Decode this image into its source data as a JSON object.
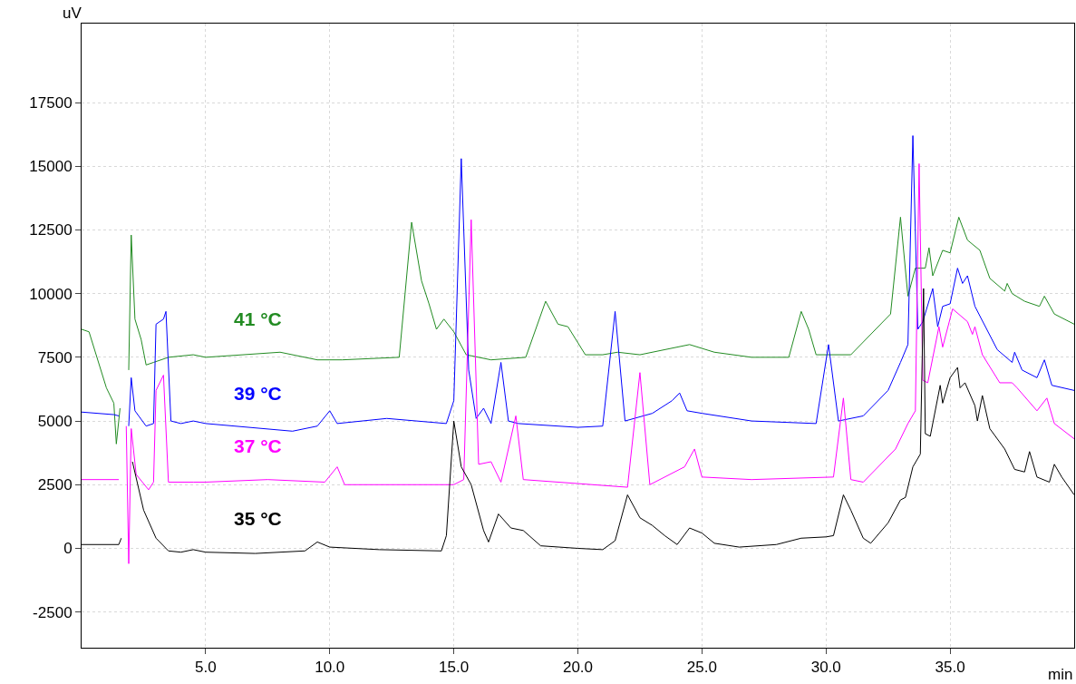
{
  "chart_data": {
    "type": "line",
    "xlabel": "min",
    "ylabel": "uV",
    "xlim": [
      0,
      40
    ],
    "ylim": [
      -3900,
      20600
    ],
    "xticks": [
      {
        "value": 5,
        "label": "5.0"
      },
      {
        "value": 10,
        "label": "10.0"
      },
      {
        "value": 15,
        "label": "15.0"
      },
      {
        "value": 20,
        "label": "20.0"
      },
      {
        "value": 25,
        "label": "25.0"
      },
      {
        "value": 30,
        "label": "30.0"
      },
      {
        "value": 35,
        "label": "35.0"
      }
    ],
    "yticks": [
      -2500,
      0,
      2500,
      5000,
      7500,
      10000,
      12500,
      15000,
      17500
    ],
    "grid": true,
    "legend": false,
    "marker": "none",
    "line_style": "solid",
    "series": [
      {
        "name": "41 °C",
        "color": "#228b22",
        "x": [
          0,
          0.3,
          1.0,
          1.3,
          1.4,
          1.55,
          1.6,
          1.7,
          1.9,
          2.0,
          2.15,
          2.4,
          2.6,
          2.9,
          3.5,
          4.5,
          5,
          8.0,
          9.5,
          10.5,
          12.8,
          13.3,
          13.7,
          14.0,
          14.3,
          14.6,
          15.0,
          15.5,
          16.5,
          17.9,
          18.7,
          19.2,
          19.6,
          20.3,
          21.0,
          21.6,
          22.5,
          24.5,
          25.5,
          27,
          28.5,
          29.0,
          29.3,
          29.6,
          31.0,
          32.0,
          32.6,
          33.0,
          33.3,
          33.6,
          34.0,
          34.15,
          34.3,
          34.7,
          35.0,
          35.35,
          35.7,
          36.2,
          36.6,
          37.2,
          37.3,
          37.5,
          38.0,
          38.6,
          38.8,
          39.2,
          40
        ],
        "values": [
          8600,
          8500,
          6300,
          5700,
          4100,
          5500,
          null,
          null,
          7000,
          12300,
          9000,
          8200,
          7200,
          7300,
          7500,
          7600,
          7500,
          7700,
          7400,
          7400,
          7500,
          12800,
          10500,
          9600,
          8600,
          9000,
          8500,
          7600,
          7400,
          7500,
          9700,
          8800,
          8700,
          7600,
          7600,
          7700,
          7600,
          8000,
          7700,
          7500,
          7500,
          9300,
          8600,
          7600,
          7600,
          8600,
          9200,
          13000,
          9900,
          11000,
          11000,
          11800,
          10700,
          11700,
          11600,
          13000,
          12100,
          11700,
          10600,
          10100,
          10400,
          10000,
          9700,
          9500,
          9900,
          9200,
          8800
        ]
      },
      {
        "name": "39 °C",
        "color": "#0000ff",
        "x": [
          0,
          1.3,
          1.5,
          1.6,
          1.75,
          1.9,
          2.0,
          2.15,
          2.6,
          2.9,
          3.0,
          3.3,
          3.4,
          3.6,
          4.0,
          4.5,
          5,
          8.5,
          9.5,
          10.0,
          10.3,
          12.3,
          14.7,
          15.0,
          15.3,
          15.6,
          15.9,
          16.2,
          16.5,
          16.9,
          17.2,
          17.6,
          20,
          21.0,
          21.5,
          21.9,
          23.0,
          23.8,
          24.1,
          24.4,
          25.0,
          27,
          29.6,
          30.1,
          30.5,
          31.5,
          32.5,
          33.0,
          33.3,
          33.5,
          33.7,
          33.9,
          34.3,
          34.5,
          34.7,
          35.0,
          35.3,
          35.5,
          35.7,
          36.0,
          36.9,
          37.5,
          37.6,
          37.9,
          38.5,
          38.8,
          39.1,
          40
        ],
        "values": [
          5350,
          5250,
          5200,
          null,
          null,
          4800,
          6700,
          5400,
          4800,
          4900,
          8800,
          9000,
          9300,
          5000,
          4900,
          5000,
          4900,
          4600,
          4800,
          5400,
          4900,
          5100,
          4900,
          5800,
          15300,
          7000,
          5100,
          5500,
          4900,
          7300,
          5000,
          4900,
          4750,
          4800,
          9300,
          5000,
          5300,
          5800,
          6100,
          5400,
          5300,
          5000,
          4900,
          8000,
          5000,
          5200,
          6200,
          7300,
          8000,
          16200,
          8600,
          8900,
          10200,
          8700,
          9500,
          9600,
          11000,
          10400,
          10700,
          9500,
          7800,
          7300,
          7700,
          7000,
          6700,
          7400,
          6400,
          6200
        ]
      },
      {
        "name": "37 °C",
        "color": "#ff00ff",
        "x": [
          0,
          1.5,
          1.6,
          1.8,
          1.9,
          2.0,
          2.2,
          2.7,
          2.9,
          3.0,
          3.3,
          3.5,
          4.5,
          5,
          7.5,
          9.8,
          10.3,
          10.6,
          15.0,
          15.4,
          15.7,
          16.0,
          16.5,
          16.9,
          17.5,
          17.8,
          22.0,
          22.5,
          22.9,
          24.3,
          24.7,
          25.0,
          27,
          30.3,
          30.7,
          31.0,
          31.5,
          32.8,
          33.3,
          33.6,
          33.75,
          33.9,
          34.1,
          34.55,
          34.7,
          35.1,
          35.7,
          35.9,
          36.0,
          36.3,
          37.0,
          37.5,
          37.7,
          38.5,
          38.9,
          39.2,
          40
        ],
        "values": [
          2700,
          2700,
          null,
          4800,
          -600,
          4700,
          2900,
          2300,
          2600,
          6200,
          6800,
          2600,
          2600,
          2600,
          2700,
          2600,
          3200,
          2500,
          2500,
          2700,
          12900,
          3300,
          3400,
          2600,
          5200,
          2700,
          2400,
          6900,
          2500,
          3200,
          3900,
          2800,
          2700,
          2800,
          5900,
          2700,
          2600,
          3900,
          4900,
          5400,
          15100,
          6600,
          6500,
          8700,
          7900,
          9400,
          8900,
          8400,
          8700,
          7600,
          6500,
          6500,
          6300,
          5400,
          5900,
          4900,
          4300
        ]
      },
      {
        "name": "35 °C",
        "color": "#000000",
        "x": [
          0,
          1.5,
          1.6,
          1.65,
          1.75,
          1.85,
          1.9,
          2.05,
          2.5,
          3.0,
          3.5,
          4.0,
          4.5,
          5,
          7,
          9,
          9.5,
          10,
          12,
          14.5,
          14.7,
          15.0,
          15.3,
          15.7,
          16.2,
          16.4,
          16.8,
          17.3,
          17.8,
          18.5,
          20,
          21.0,
          21.5,
          22.0,
          22.5,
          23.0,
          23.5,
          24.0,
          24.5,
          25.0,
          25.5,
          26.5,
          28,
          29,
          30.0,
          30.3,
          30.7,
          31.0,
          31.5,
          31.8,
          32.5,
          33.0,
          33.2,
          33.5,
          33.8,
          33.93,
          34.0,
          34.2,
          34.6,
          34.7,
          35.0,
          35.3,
          35.4,
          35.6,
          36.0,
          36.1,
          36.3,
          36.6,
          37.2,
          37.6,
          38.0,
          38.2,
          38.5,
          39.0,
          39.2,
          39.5,
          40
        ],
        "values": [
          150,
          150,
          400,
          null,
          null,
          null,
          null,
          3400,
          1500,
          400,
          -100,
          -150,
          -50,
          -150,
          -200,
          -100,
          250,
          50,
          -50,
          -100,
          500,
          5000,
          3200,
          2500,
          700,
          250,
          1350,
          800,
          700,
          100,
          0,
          -50,
          300,
          2100,
          1200,
          900,
          500,
          150,
          800,
          600,
          200,
          50,
          150,
          400,
          450,
          500,
          2100,
          1500,
          400,
          200,
          1000,
          1900,
          2000,
          3200,
          3700,
          10200,
          4500,
          4400,
          6400,
          5700,
          6700,
          7100,
          6300,
          6500,
          5600,
          5000,
          6000,
          4700,
          3900,
          3100,
          3000,
          3800,
          2800,
          2600,
          3300,
          2800,
          2100
        ]
      }
    ]
  }
}
